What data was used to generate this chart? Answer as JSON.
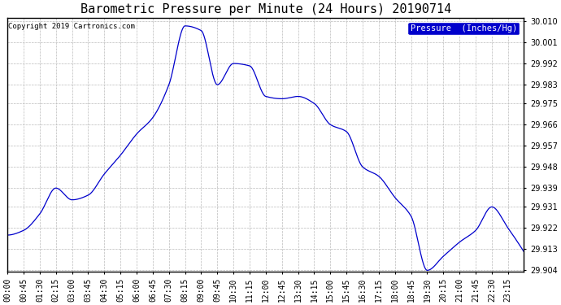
{
  "title": "Barometric Pressure per Minute (24 Hours) 20190714",
  "copyright": "Copyright 2019 Cartronics.com",
  "legend_label": "Pressure  (Inches/Hg)",
  "ylim": [
    29.9035,
    30.0115
  ],
  "yticks": [
    29.904,
    29.913,
    29.922,
    29.931,
    29.939,
    29.948,
    29.957,
    29.966,
    29.975,
    29.983,
    29.992,
    30.001,
    30.01
  ],
  "xtick_labels": [
    "00:00",
    "00:45",
    "01:30",
    "02:15",
    "03:00",
    "03:45",
    "04:30",
    "05:15",
    "06:00",
    "06:45",
    "07:30",
    "08:15",
    "09:00",
    "09:45",
    "10:30",
    "11:15",
    "12:00",
    "12:45",
    "13:30",
    "14:15",
    "15:00",
    "15:45",
    "16:30",
    "17:15",
    "18:00",
    "18:45",
    "19:30",
    "20:15",
    "21:00",
    "21:45",
    "22:30",
    "23:15"
  ],
  "line_color": "#0000cc",
  "background_color": "#ffffff",
  "title_fontsize": 11,
  "tick_fontsize": 7,
  "legend_bg": "#0000cc",
  "legend_fg": "#ffffff",
  "grid_color": "#bbbbbb",
  "key_times": [
    0,
    45,
    90,
    135,
    180,
    225,
    270,
    315,
    360,
    405,
    450,
    495,
    540,
    585,
    630,
    675,
    720,
    765,
    810,
    855,
    900,
    945,
    990,
    1035,
    1080,
    1125,
    1170,
    1215,
    1260,
    1305,
    1350,
    1395,
    1439
  ],
  "key_values": [
    29.919,
    29.921,
    29.928,
    29.939,
    29.934,
    29.936,
    29.945,
    29.953,
    29.962,
    29.969,
    29.983,
    30.008,
    30.006,
    29.983,
    29.992,
    29.991,
    29.978,
    29.977,
    29.978,
    29.975,
    29.966,
    29.963,
    29.948,
    29.944,
    29.935,
    29.927,
    29.904,
    29.91,
    29.916,
    29.921,
    29.931,
    29.922,
    29.912
  ]
}
